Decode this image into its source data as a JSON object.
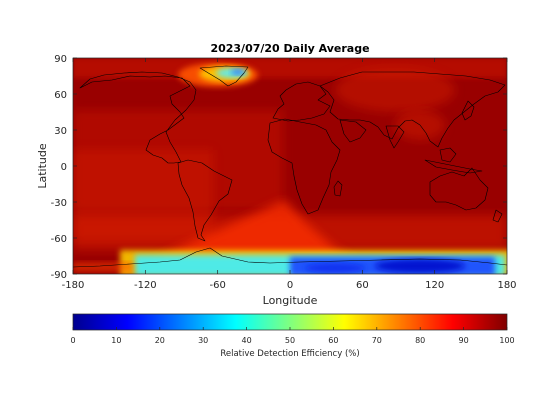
{
  "chart_data": {
    "type": "heatmap",
    "title": "2023/07/20 Daily Average",
    "xlabel": "Longitude",
    "ylabel": "Latitude",
    "xlim": [
      -180,
      180
    ],
    "ylim": [
      -90,
      90
    ],
    "xticks": [
      "-180",
      "-120",
      "-60",
      "0",
      "60",
      "120",
      "180"
    ],
    "yticks": [
      "90",
      "60",
      "30",
      "0",
      "-30",
      "-60",
      "-90"
    ],
    "colorbar": {
      "label": "Relative Detection Efficiency (%)",
      "range": [
        0,
        100
      ],
      "ticks": [
        "0",
        "10",
        "20",
        "30",
        "40",
        "50",
        "60",
        "70",
        "80",
        "90",
        "100"
      ],
      "colormap": "jet",
      "orientation": "horizontal"
    },
    "grid": false,
    "background_value": 96,
    "low_efficiency_regions": [
      {
        "region": "Greenland",
        "lon_range": [
          -55,
          -25
        ],
        "lat_range": [
          62,
          82
        ],
        "min_value": 25
      },
      {
        "region": "Antarctica",
        "lon_range": [
          -150,
          170
        ],
        "lat_range": [
          -90,
          -65
        ],
        "min_value": 10
      },
      {
        "region": "South Atlantic",
        "lon_range": [
          -70,
          30
        ],
        "lat_range": [
          -75,
          -40
        ],
        "min_value": 70
      }
    ]
  }
}
